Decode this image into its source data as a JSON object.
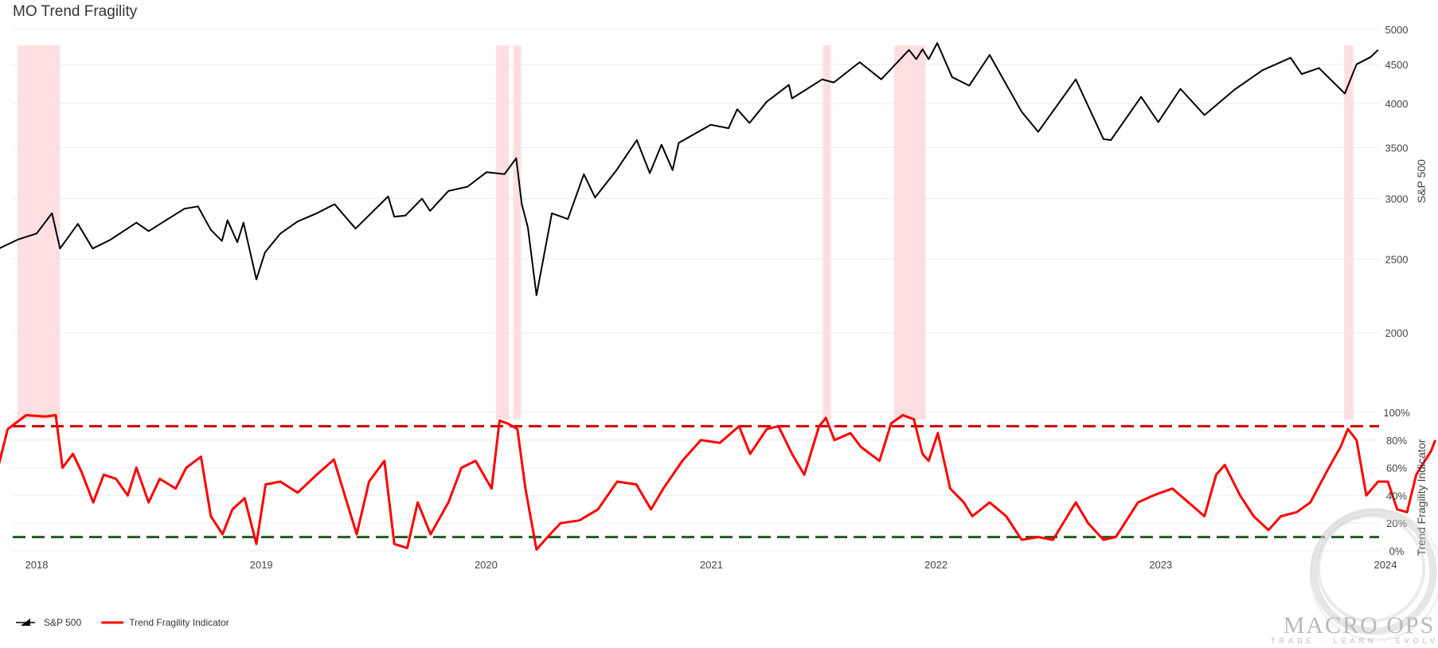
{
  "title": "MO Trend Fragility",
  "logo": {
    "name": "MACRO OPS",
    "tagline": "TRADE · LEARN · EVOLVE"
  },
  "chart_data": {
    "type": "line",
    "title": "MO Trend Fragility",
    "x_ticks": [
      "2018",
      "2019",
      "2020",
      "2021",
      "2022",
      "2023",
      "2024"
    ],
    "grid": true,
    "legend_placement": "bottom-left",
    "upper_panel": {
      "series_name": "S&P 500",
      "axis_label": "S&P 500",
      "scale": "log",
      "ylim": [
        1800,
        5000
      ],
      "y_ticks": [
        2000,
        2500,
        3000,
        3500,
        4000,
        4500,
        5000
      ],
      "color": "#000000",
      "points": [
        [
          "2017-11-01",
          2580
        ],
        [
          "2017-12-01",
          2650
        ],
        [
          "2018-01-01",
          2700
        ],
        [
          "2018-01-26",
          2870
        ],
        [
          "2018-02-08",
          2580
        ],
        [
          "2018-03-09",
          2780
        ],
        [
          "2018-04-02",
          2580
        ],
        [
          "2018-05-01",
          2650
        ],
        [
          "2018-06-12",
          2790
        ],
        [
          "2018-07-02",
          2720
        ],
        [
          "2018-08-29",
          2910
        ],
        [
          "2018-09-20",
          2930
        ],
        [
          "2018-10-11",
          2730
        ],
        [
          "2018-10-29",
          2640
        ],
        [
          "2018-11-07",
          2810
        ],
        [
          "2018-11-23",
          2630
        ],
        [
          "2018-12-03",
          2790
        ],
        [
          "2018-12-24",
          2350
        ],
        [
          "2019-01-07",
          2550
        ],
        [
          "2019-02-01",
          2700
        ],
        [
          "2019-03-01",
          2800
        ],
        [
          "2019-04-01",
          2870
        ],
        [
          "2019-04-30",
          2950
        ],
        [
          "2019-06-03",
          2740
        ],
        [
          "2019-07-26",
          3020
        ],
        [
          "2019-08-05",
          2840
        ],
        [
          "2019-08-23",
          2850
        ],
        [
          "2019-09-19",
          3000
        ],
        [
          "2019-10-02",
          2890
        ],
        [
          "2019-11-01",
          3070
        ],
        [
          "2019-12-02",
          3110
        ],
        [
          "2020-01-02",
          3250
        ],
        [
          "2020-01-31",
          3230
        ],
        [
          "2020-02-19",
          3390
        ],
        [
          "2020-02-28",
          2950
        ],
        [
          "2020-03-09",
          2750
        ],
        [
          "2020-03-23",
          2240
        ],
        [
          "2020-04-17",
          2870
        ],
        [
          "2020-05-13",
          2820
        ],
        [
          "2020-06-08",
          3230
        ],
        [
          "2020-06-26",
          3010
        ],
        [
          "2020-07-31",
          3270
        ],
        [
          "2020-09-02",
          3580
        ],
        [
          "2020-09-23",
          3240
        ],
        [
          "2020-10-12",
          3530
        ],
        [
          "2020-10-30",
          3270
        ],
        [
          "2020-11-09",
          3550
        ],
        [
          "2020-12-31",
          3750
        ],
        [
          "2021-01-29",
          3710
        ],
        [
          "2021-02-12",
          3930
        ],
        [
          "2021-03-04",
          3770
        ],
        [
          "2021-04-01",
          4020
        ],
        [
          "2021-05-07",
          4230
        ],
        [
          "2021-05-12",
          4060
        ],
        [
          "2021-06-30",
          4300
        ],
        [
          "2021-07-19",
          4260
        ],
        [
          "2021-08-30",
          4530
        ],
        [
          "2021-10-04",
          4300
        ],
        [
          "2021-11-18",
          4700
        ],
        [
          "2021-11-30",
          4570
        ],
        [
          "2021-12-10",
          4710
        ],
        [
          "2021-12-20",
          4570
        ],
        [
          "2022-01-03",
          4800
        ],
        [
          "2022-01-27",
          4330
        ],
        [
          "2022-02-24",
          4220
        ],
        [
          "2022-03-29",
          4630
        ],
        [
          "2022-05-20",
          3900
        ],
        [
          "2022-06-16",
          3670
        ],
        [
          "2022-08-16",
          4300
        ],
        [
          "2022-09-30",
          3590
        ],
        [
          "2022-10-12",
          3580
        ],
        [
          "2022-11-30",
          4080
        ],
        [
          "2022-12-28",
          3780
        ],
        [
          "2023-02-02",
          4180
        ],
        [
          "2023-03-13",
          3860
        ],
        [
          "2023-05-01",
          4170
        ],
        [
          "2023-06-15",
          4420
        ],
        [
          "2023-07-31",
          4590
        ],
        [
          "2023-08-18",
          4370
        ],
        [
          "2023-09-15",
          4450
        ],
        [
          "2023-10-27",
          4120
        ],
        [
          "2023-11-15",
          4500
        ],
        [
          "2023-12-08",
          4600
        ],
        [
          "2023-12-20",
          4700
        ]
      ]
    },
    "lower_panel": {
      "series_name": "Trend Fragility Indicator",
      "axis_label": "Trend Fragility Indicator",
      "ylim": [
        0,
        100
      ],
      "y_ticks": [
        "0%",
        "20%",
        "40%",
        "60%",
        "80%",
        "100%"
      ],
      "color": "#ff0000",
      "upper_threshold": 90,
      "upper_threshold_color": "#cc0000",
      "lower_threshold": 10,
      "lower_threshold_color": "#1e5c1e",
      "points": [
        [
          "2017-11-01",
          63
        ],
        [
          "2017-11-15",
          88
        ],
        [
          "2017-12-15",
          98
        ],
        [
          "2018-01-15",
          97
        ],
        [
          "2018-02-01",
          98
        ],
        [
          "2018-02-12",
          60
        ],
        [
          "2018-03-01",
          70
        ],
        [
          "2018-03-15",
          57
        ],
        [
          "2018-04-03",
          35
        ],
        [
          "2018-04-20",
          55
        ],
        [
          "2018-05-10",
          52
        ],
        [
          "2018-05-29",
          40
        ],
        [
          "2018-06-12",
          60
        ],
        [
          "2018-07-02",
          35
        ],
        [
          "2018-07-20",
          52
        ],
        [
          "2018-08-15",
          45
        ],
        [
          "2018-09-01",
          60
        ],
        [
          "2018-09-25",
          68
        ],
        [
          "2018-10-11",
          25
        ],
        [
          "2018-10-30",
          12
        ],
        [
          "2018-11-15",
          30
        ],
        [
          "2018-12-05",
          38
        ],
        [
          "2018-12-24",
          5
        ],
        [
          "2019-01-08",
          48
        ],
        [
          "2019-02-01",
          50
        ],
        [
          "2019-03-01",
          42
        ],
        [
          "2019-04-01",
          55
        ],
        [
          "2019-04-29",
          66
        ],
        [
          "2019-05-20",
          35
        ],
        [
          "2019-06-05",
          12
        ],
        [
          "2019-06-25",
          50
        ],
        [
          "2019-07-20",
          65
        ],
        [
          "2019-08-05",
          5
        ],
        [
          "2019-08-26",
          2
        ],
        [
          "2019-09-12",
          35
        ],
        [
          "2019-10-03",
          12
        ],
        [
          "2019-11-01",
          35
        ],
        [
          "2019-11-22",
          60
        ],
        [
          "2019-12-15",
          65
        ],
        [
          "2020-01-10",
          45
        ],
        [
          "2020-01-23",
          94
        ],
        [
          "2020-02-05",
          92
        ],
        [
          "2020-02-21",
          88
        ],
        [
          "2020-03-05",
          45
        ],
        [
          "2020-03-23",
          1
        ],
        [
          "2020-04-10",
          10
        ],
        [
          "2020-05-01",
          20
        ],
        [
          "2020-06-01",
          22
        ],
        [
          "2020-07-01",
          30
        ],
        [
          "2020-08-01",
          50
        ],
        [
          "2020-09-01",
          48
        ],
        [
          "2020-09-25",
          30
        ],
        [
          "2020-10-15",
          45
        ],
        [
          "2020-11-15",
          65
        ],
        [
          "2020-12-15",
          80
        ],
        [
          "2021-01-15",
          78
        ],
        [
          "2021-02-15",
          90
        ],
        [
          "2021-03-05",
          70
        ],
        [
          "2021-04-01",
          88
        ],
        [
          "2021-04-20",
          90
        ],
        [
          "2021-05-12",
          70
        ],
        [
          "2021-06-01",
          55
        ],
        [
          "2021-06-25",
          90
        ],
        [
          "2021-07-06",
          96
        ],
        [
          "2021-07-20",
          80
        ],
        [
          "2021-08-15",
          85
        ],
        [
          "2021-09-01",
          75
        ],
        [
          "2021-10-01",
          65
        ],
        [
          "2021-10-20",
          92
        ],
        [
          "2021-11-08",
          98
        ],
        [
          "2021-11-26",
          95
        ],
        [
          "2021-12-10",
          70
        ],
        [
          "2021-12-20",
          65
        ],
        [
          "2022-01-04",
          85
        ],
        [
          "2022-01-24",
          45
        ],
        [
          "2022-02-15",
          35
        ],
        [
          "2022-03-01",
          25
        ],
        [
          "2022-03-29",
          35
        ],
        [
          "2022-04-25",
          25
        ],
        [
          "2022-05-20",
          8
        ],
        [
          "2022-06-16",
          10
        ],
        [
          "2022-07-10",
          8
        ],
        [
          "2022-08-16",
          35
        ],
        [
          "2022-09-05",
          20
        ],
        [
          "2022-09-30",
          8
        ],
        [
          "2022-10-20",
          10
        ],
        [
          "2022-11-25",
          35
        ],
        [
          "2022-12-20",
          40
        ],
        [
          "2023-01-20",
          45
        ],
        [
          "2023-02-15",
          35
        ],
        [
          "2023-03-13",
          25
        ],
        [
          "2023-04-01",
          55
        ],
        [
          "2023-04-15",
          62
        ],
        [
          "2023-05-10",
          40
        ],
        [
          "2023-06-01",
          25
        ],
        [
          "2023-06-25",
          15
        ],
        [
          "2023-07-15",
          25
        ],
        [
          "2023-08-10",
          28
        ],
        [
          "2023-09-01",
          35
        ],
        [
          "2023-10-01",
          60
        ],
        [
          "2023-10-20",
          75
        ],
        [
          "2023-11-01",
          88
        ],
        [
          "2023-11-15",
          80
        ],
        [
          "2023-12-01",
          40
        ],
        [
          "2023-12-20",
          50
        ],
        [
          "2024-01-05",
          50
        ],
        [
          "2024-01-20",
          30
        ],
        [
          "2024-02-05",
          28
        ],
        [
          "2024-02-20",
          55
        ],
        [
          "2024-03-05",
          65
        ],
        [
          "2024-03-15",
          72
        ],
        [
          "2024-03-22",
          80
        ]
      ]
    },
    "highlight_ranges": [
      [
        "2017-12-01",
        "2018-02-08"
      ],
      [
        "2020-01-17",
        "2020-02-07"
      ],
      [
        "2020-02-14",
        "2020-02-27"
      ],
      [
        "2021-07-01",
        "2021-07-14"
      ],
      [
        "2021-10-25",
        "2021-12-15"
      ],
      [
        "2023-10-26",
        "2023-11-10"
      ]
    ],
    "highlight_color": "#fdd9dc",
    "legend": [
      {
        "label": "S&P 500",
        "color": "#000000",
        "style": "ohlc"
      },
      {
        "label": "Trend Fragility Indicator",
        "color": "#ff0000",
        "style": "line"
      }
    ]
  }
}
